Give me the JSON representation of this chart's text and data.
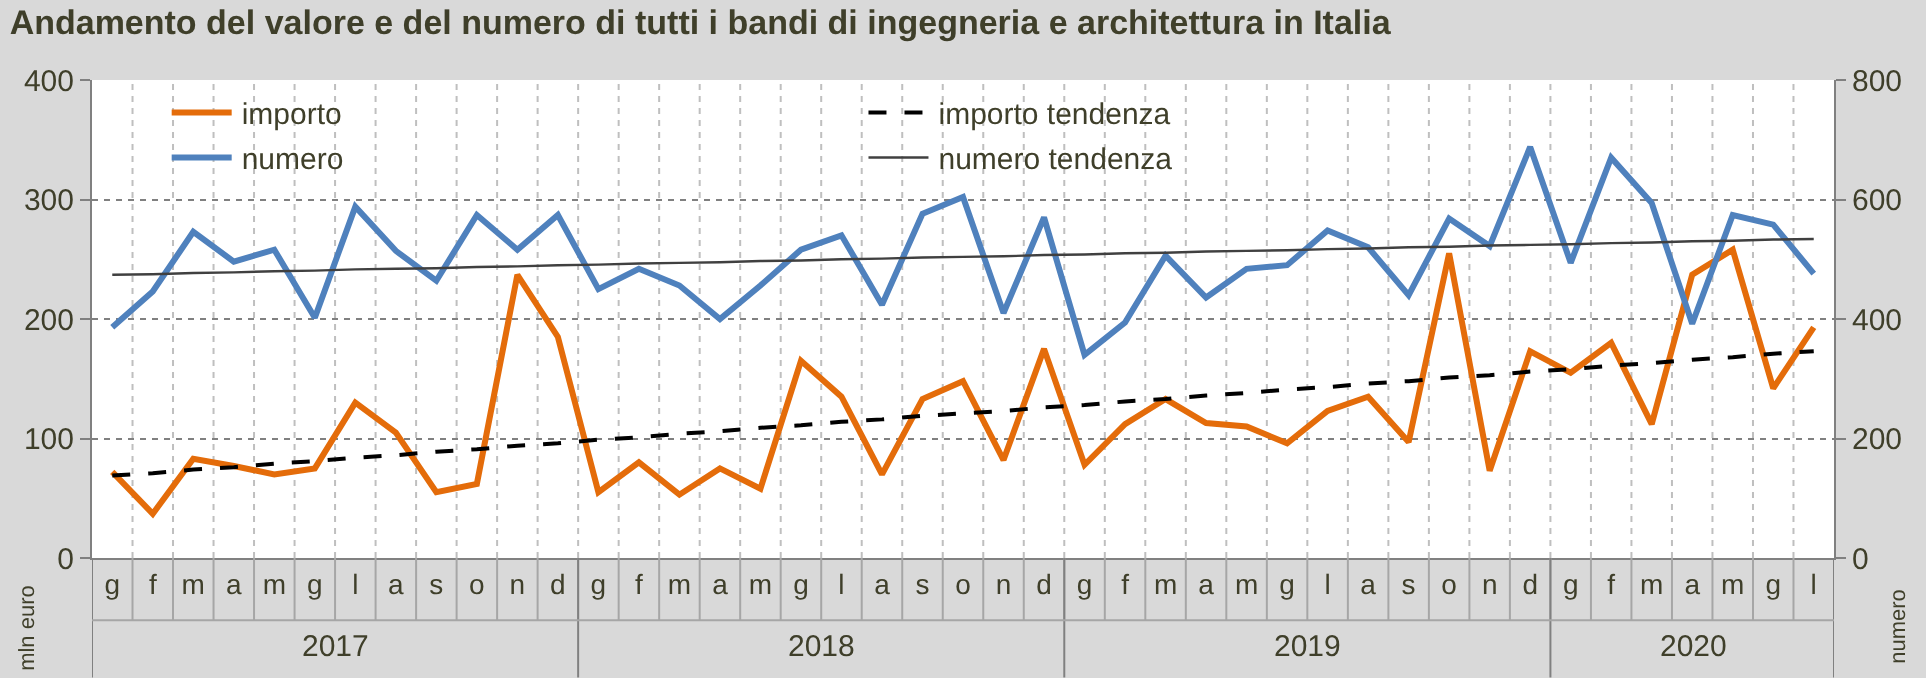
{
  "chart_data": {
    "type": "line",
    "title": "Andamento del valore e del numero di tutti i bandi di ingegneria e architettura in Italia",
    "categories": [
      "g",
      "f",
      "m",
      "a",
      "m",
      "g",
      "l",
      "a",
      "s",
      "o",
      "n",
      "d",
      "g",
      "f",
      "m",
      "a",
      "m",
      "g",
      "l",
      "a",
      "s",
      "o",
      "n",
      "d",
      "g",
      "f",
      "m",
      "a",
      "m",
      "g",
      "l",
      "a",
      "s",
      "o",
      "n",
      "d",
      "g",
      "f",
      "m",
      "a",
      "m",
      "g",
      "l"
    ],
    "ylim": [
      0,
      400
    ],
    "yticks": [
      0,
      100,
      200,
      300,
      400
    ],
    "y2lim": [
      0,
      800
    ],
    "y2ticks": [
      0,
      200,
      400,
      600,
      800
    ],
    "ylabel": "mln euro",
    "y2label": "numero",
    "grid": true,
    "legend": "top left",
    "marker": "none",
    "annotations": [
      "2017",
      "2018",
      "2019",
      "2020"
    ],
    "series": [
      {
        "name": "importo",
        "color": "#e46c0a",
        "line_style": "solid",
        "values": [
          72,
          37,
          83,
          77,
          70,
          75,
          130,
          105,
          55,
          62,
          237,
          185,
          55,
          80,
          53,
          75,
          58,
          165,
          135,
          70,
          133,
          148,
          82,
          175,
          78,
          112,
          133,
          113,
          110,
          96,
          123,
          135,
          97,
          255,
          73,
          173,
          155,
          180,
          112,
          237,
          258,
          142,
          193
        ]
      },
      {
        "name": "numero",
        "color": "#4f81bd",
        "axis": "y2",
        "line_style": "solid",
        "values": [
          386,
          446,
          546,
          496,
          516,
          402,
          588,
          514,
          464,
          574,
          516,
          574,
          450,
          484,
          456,
          400,
          456,
          516,
          540,
          424,
          576,
          604,
          410,
          570,
          340,
          394,
          506,
          436,
          484,
          490,
          548,
          520,
          440,
          568,
          522,
          688,
          494,
          670,
          594,
          392,
          574,
          558,
          476
        ]
      },
      {
        "name": "importo tendenza",
        "color": "#000000",
        "line_style": "dashed",
        "values": [
          69,
          71,
          74,
          76,
          79,
          81,
          84,
          86,
          89,
          91,
          94,
          96,
          99,
          101,
          104,
          106,
          109,
          111,
          114,
          116,
          119,
          121,
          123,
          126,
          128,
          131,
          133,
          136,
          138,
          141,
          143,
          146,
          148,
          151,
          153,
          156,
          158,
          161,
          163,
          166,
          168,
          171,
          173
        ]
      },
      {
        "name": "numero tendenza",
        "color": "#404040",
        "axis": "y2",
        "line_style": "solid",
        "values": [
          474,
          475,
          477,
          478,
          480,
          481,
          483,
          484,
          485,
          487,
          488,
          490,
          491,
          493,
          494,
          495,
          497,
          498,
          500,
          501,
          503,
          504,
          505,
          507,
          508,
          510,
          511,
          513,
          514,
          515,
          517,
          518,
          520,
          521,
          523,
          524,
          525,
          527,
          528,
          530,
          531,
          533,
          534
        ]
      }
    ]
  }
}
